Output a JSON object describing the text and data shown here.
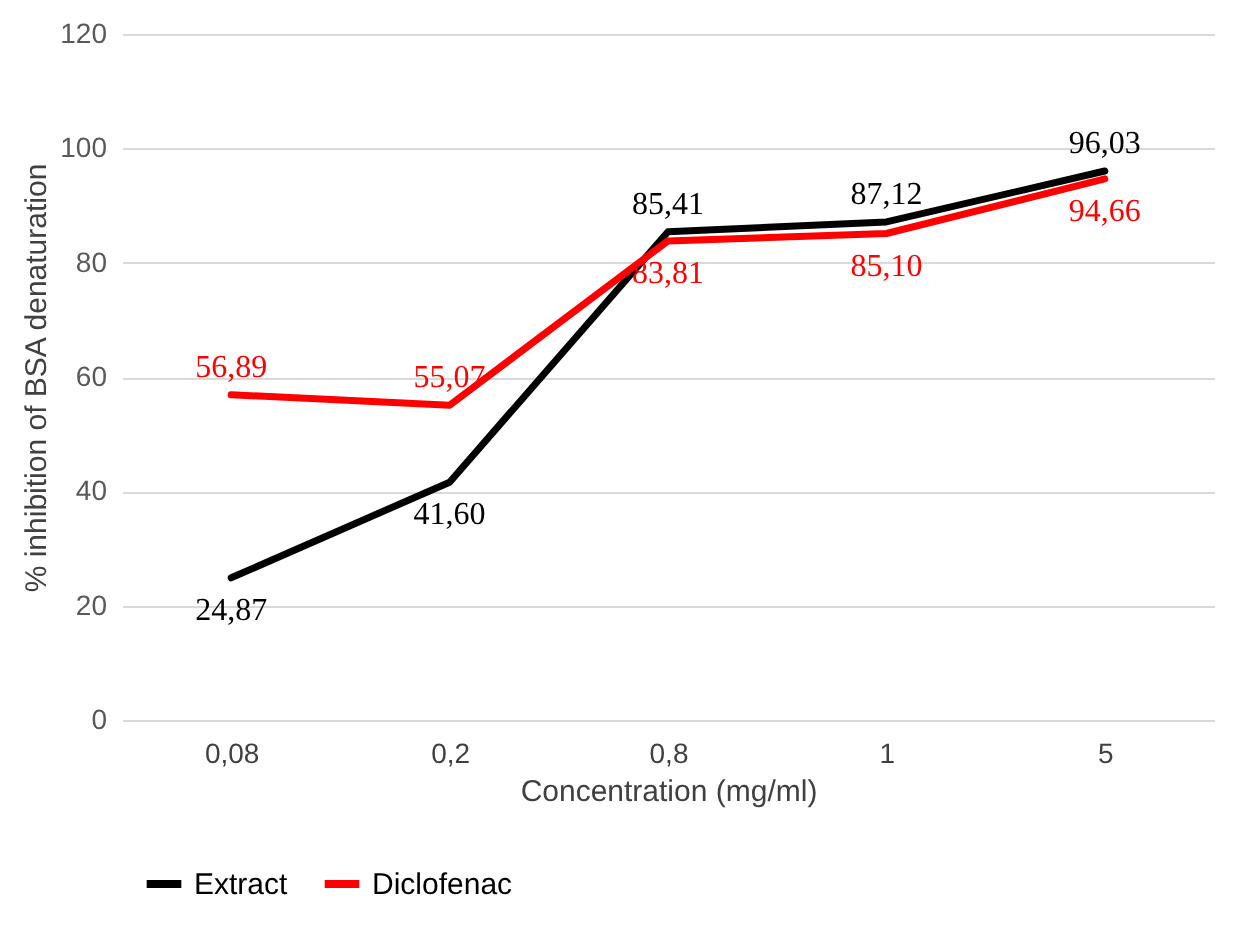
{
  "chart_data": {
    "type": "line",
    "xlabel": "Concentration (mg/ml)",
    "ylabel": "% inhibition of BSA denaturation",
    "categories": [
      "0,08",
      "0,2",
      "0,8",
      "1",
      "5"
    ],
    "series": [
      {
        "name": "Extract",
        "color": "#000000",
        "values": [
          24.87,
          41.6,
          85.41,
          87.12,
          96.03
        ],
        "value_labels": [
          "24,87",
          "41,60",
          "85,41",
          "87,12",
          "96,03"
        ]
      },
      {
        "name": "Diclofenac",
        "color": "#ff0000",
        "values": [
          56.89,
          55.07,
          83.81,
          85.1,
          94.66
        ],
        "value_labels": [
          "56,89",
          "55,07",
          "83,81",
          "85,10",
          "94,66"
        ]
      }
    ],
    "ylim": [
      0,
      120
    ],
    "yticks": [
      0,
      20,
      40,
      60,
      80,
      100,
      120
    ],
    "grid": "y",
    "legend": "bottom",
    "marker": "none",
    "line_style": "solid"
  }
}
